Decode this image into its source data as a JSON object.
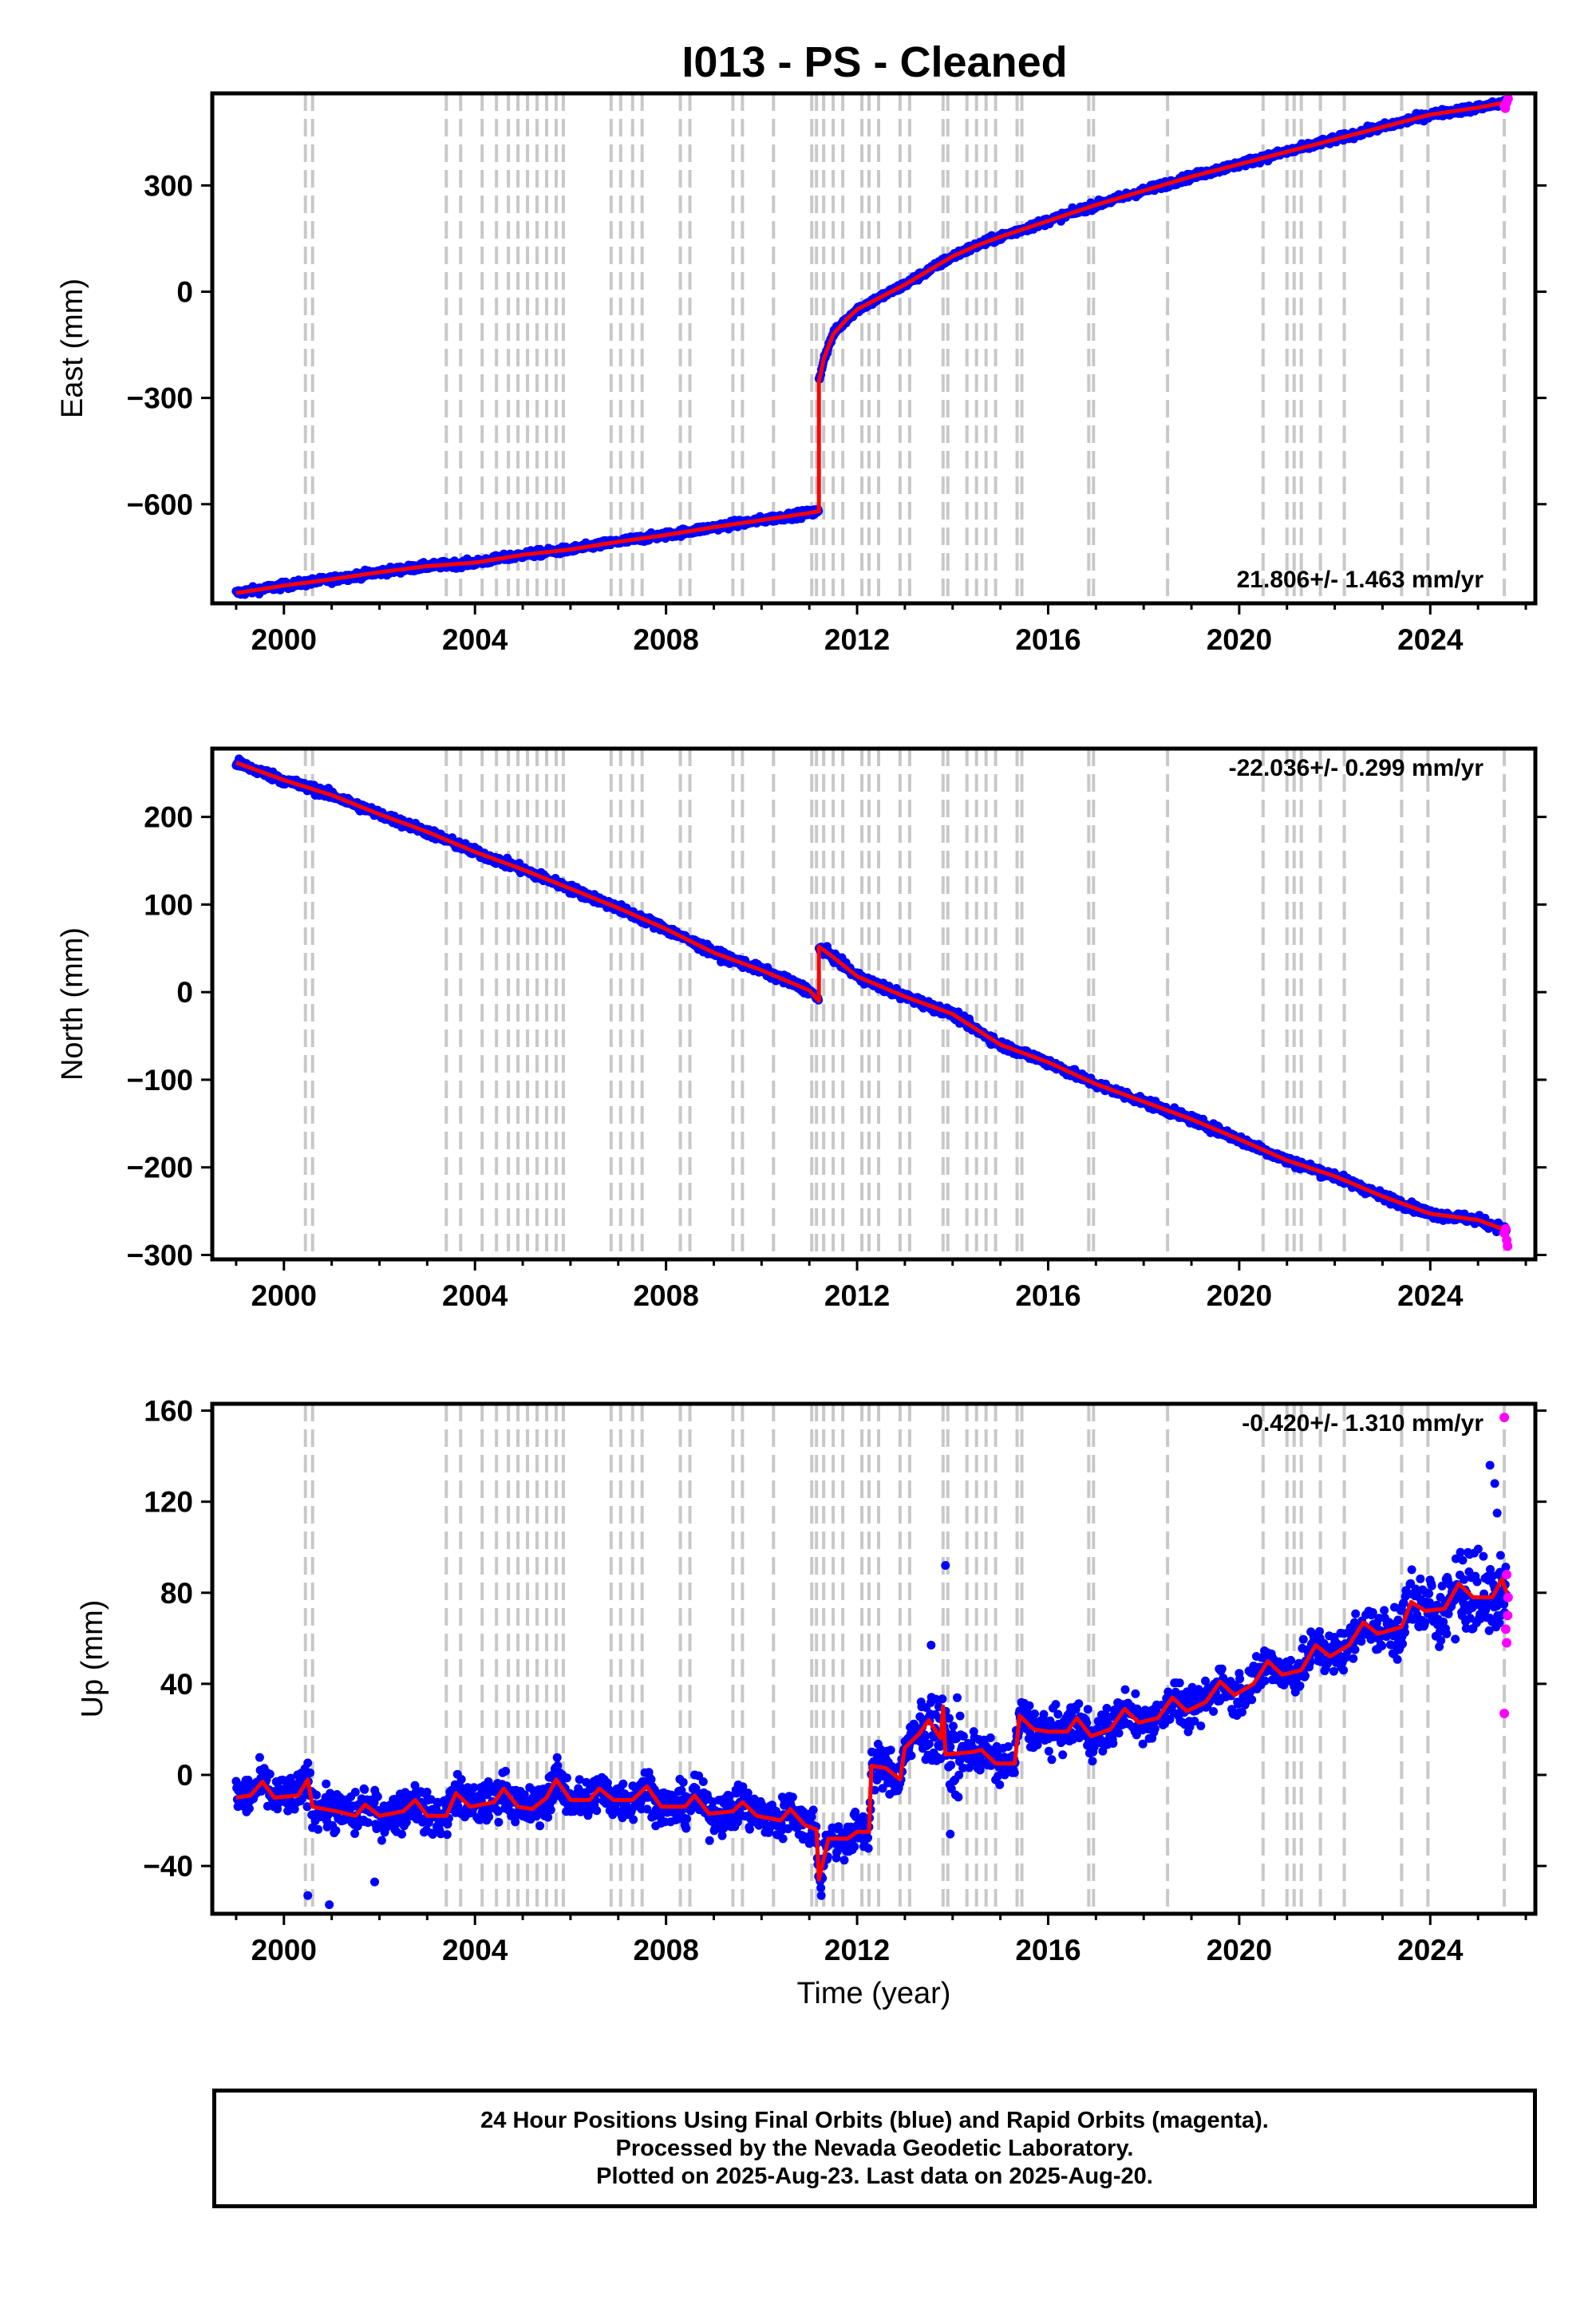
{
  "title": "I013  - PS - Cleaned",
  "footer": {
    "line1": "24 Hour Positions Using Final Orbits (blue) and Rapid Orbits (magenta).",
    "line2": "Processed by the Nevada Geodetic Laboratory.",
    "line3": "Plotted on 2025-Aug-23. Last data on 2025-Aug-20."
  },
  "colors": {
    "final": "#0000ff",
    "rapid": "#ff00ff",
    "model": "#ff0000",
    "steps": "#c8c8c8"
  },
  "step_lines": [
    2000.45,
    2000.6,
    2003.4,
    2003.7,
    2004.15,
    2004.45,
    2004.7,
    2004.9,
    2005.1,
    2005.3,
    2005.5,
    2005.7,
    2005.85,
    2006.85,
    2007.05,
    2007.3,
    2007.5,
    2008.3,
    2008.5,
    2009.4,
    2009.6,
    2010.25,
    2011.05,
    2011.15,
    2011.3,
    2011.5,
    2011.7,
    2012.1,
    2012.25,
    2012.45,
    2012.9,
    2013.1,
    2013.8,
    2013.9,
    2014.3,
    2014.5,
    2014.7,
    2014.9,
    2015.35,
    2015.45,
    2016.85,
    2016.95,
    2018.5,
    2020.5,
    2021.0,
    2021.15,
    2021.3,
    2021.7,
    2022.2,
    2023.4,
    2023.95,
    2025.55
  ],
  "chart_data": [
    {
      "type": "scatter",
      "title": "I013  - PS - Cleaned",
      "xlabel": "",
      "ylabel": "East (mm)",
      "xlim": [
        1998.5,
        2026.2
      ],
      "ylim": [
        -880,
        560
      ],
      "xticks": [
        2000,
        2004,
        2008,
        2012,
        2016,
        2020,
        2024
      ],
      "yticks": [
        -600,
        -300,
        0,
        300
      ],
      "ytick_labels": [
        "−600",
        "−300",
        "0",
        "300"
      ],
      "rate_label": "21.806+/- 1.463 mm/yr",
      "rate_pos": "bottom-right",
      "model": [
        [
          1999.0,
          -851
        ],
        [
          2000.0,
          -830
        ],
        [
          2001.0,
          -812
        ],
        [
          2002.0,
          -792
        ],
        [
          2003.0,
          -775
        ],
        [
          2004.0,
          -765
        ],
        [
          2005.0,
          -743
        ],
        [
          2006.0,
          -728
        ],
        [
          2007.0,
          -706
        ],
        [
          2008.0,
          -687
        ],
        [
          2009.0,
          -665
        ],
        [
          2010.0,
          -645
        ],
        [
          2011.0,
          -625
        ],
        [
          2011.2,
          -620
        ],
        [
          2011.2,
          -255
        ],
        [
          2011.3,
          -190
        ],
        [
          2011.5,
          -120
        ],
        [
          2011.8,
          -75
        ],
        [
          2012.0,
          -50
        ],
        [
          2012.5,
          -15
        ],
        [
          2013.0,
          20
        ],
        [
          2013.5,
          60
        ],
        [
          2014.0,
          100
        ],
        [
          2014.5,
          130
        ],
        [
          2015.0,
          155
        ],
        [
          2016.0,
          200
        ],
        [
          2017.0,
          245
        ],
        [
          2018.0,
          285
        ],
        [
          2019.0,
          325
        ],
        [
          2020.0,
          360
        ],
        [
          2021.0,
          395
        ],
        [
          2022.0,
          430
        ],
        [
          2023.0,
          465
        ],
        [
          2024.0,
          500
        ],
        [
          2025.0,
          520
        ],
        [
          2025.6,
          535
        ]
      ],
      "rapid": [
        [
          2025.55,
          525
        ],
        [
          2025.6,
          535
        ],
        [
          2025.63,
          545
        ],
        [
          2025.57,
          518
        ]
      ]
    },
    {
      "type": "scatter",
      "title": "",
      "xlabel": "",
      "ylabel": "North (mm)",
      "xlim": [
        1998.5,
        2026.2
      ],
      "ylim": [
        -305,
        278
      ],
      "xticks": [
        2000,
        2004,
        2008,
        2012,
        2016,
        2020,
        2024
      ],
      "yticks": [
        -300,
        -200,
        -100,
        0,
        100,
        200
      ],
      "ytick_labels": [
        "−300",
        "−200",
        "−100",
        "0",
        "100",
        "200"
      ],
      "rate_label": "-22.036+/- 0.299 mm/yr",
      "rate_pos": "top-right",
      "model": [
        [
          1999.0,
          262
        ],
        [
          2000.0,
          242
        ],
        [
          2001.0,
          225
        ],
        [
          2002.0,
          203
        ],
        [
          2003.0,
          183
        ],
        [
          2004.0,
          160
        ],
        [
          2005.0,
          140
        ],
        [
          2006.0,
          118
        ],
        [
          2007.0,
          96
        ],
        [
          2008.0,
          72
        ],
        [
          2009.0,
          45
        ],
        [
          2010.0,
          25
        ],
        [
          2011.0,
          2
        ],
        [
          2011.2,
          -10
        ],
        [
          2011.2,
          52
        ],
        [
          2011.5,
          40
        ],
        [
          2012.0,
          18
        ],
        [
          2013.0,
          -5
        ],
        [
          2014.0,
          -25
        ],
        [
          2015.0,
          -60
        ],
        [
          2016.0,
          -80
        ],
        [
          2017.0,
          -105
        ],
        [
          2018.0,
          -125
        ],
        [
          2019.0,
          -145
        ],
        [
          2020.0,
          -168
        ],
        [
          2021.0,
          -192
        ],
        [
          2022.0,
          -210
        ],
        [
          2023.0,
          -233
        ],
        [
          2024.0,
          -253
        ],
        [
          2025.0,
          -260
        ],
        [
          2025.6,
          -272
        ]
      ],
      "rapid": [
        [
          2025.55,
          -275
        ],
        [
          2025.6,
          -283
        ],
        [
          2025.62,
          -290
        ],
        [
          2025.58,
          -270
        ]
      ]
    },
    {
      "type": "scatter",
      "title": "",
      "xlabel": "Time (year)",
      "ylabel": "Up (mm)",
      "xlim": [
        1998.5,
        2026.2
      ],
      "ylim": [
        -61,
        163
      ],
      "xticks": [
        2000,
        2004,
        2008,
        2012,
        2016,
        2020,
        2024
      ],
      "yticks": [
        -40,
        0,
        40,
        80,
        120,
        160
      ],
      "ytick_labels": [
        "−40",
        "0",
        "40",
        "80",
        "120",
        "160"
      ],
      "rate_label": "-0.420+/- 1.310 mm/yr",
      "rate_pos": "top-right",
      "model": [
        [
          1999.0,
          -10
        ],
        [
          1999.3,
          -9
        ],
        [
          1999.55,
          -3
        ],
        [
          1999.8,
          -10
        ],
        [
          2000.3,
          -9
        ],
        [
          2000.5,
          -2
        ],
        [
          2000.6,
          -14
        ],
        [
          2001.1,
          -16
        ],
        [
          2001.5,
          -18
        ],
        [
          2001.7,
          -13
        ],
        [
          2002.0,
          -18
        ],
        [
          2002.5,
          -16
        ],
        [
          2002.75,
          -11
        ],
        [
          2003.0,
          -18
        ],
        [
          2003.4,
          -18
        ],
        [
          2003.6,
          -8
        ],
        [
          2003.9,
          -14
        ],
        [
          2004.4,
          -12
        ],
        [
          2004.6,
          -6
        ],
        [
          2004.9,
          -14
        ],
        [
          2005.2,
          -15
        ],
        [
          2005.5,
          -10
        ],
        [
          2005.7,
          -2
        ],
        [
          2006.0,
          -11
        ],
        [
          2006.4,
          -11
        ],
        [
          2006.6,
          -6
        ],
        [
          2006.9,
          -11
        ],
        [
          2007.3,
          -11
        ],
        [
          2007.6,
          -5
        ],
        [
          2007.9,
          -14
        ],
        [
          2008.4,
          -14
        ],
        [
          2008.6,
          -9
        ],
        [
          2008.9,
          -17
        ],
        [
          2009.4,
          -16
        ],
        [
          2009.6,
          -12
        ],
        [
          2009.9,
          -18
        ],
        [
          2010.4,
          -20
        ],
        [
          2010.6,
          -15
        ],
        [
          2010.9,
          -22
        ],
        [
          2011.15,
          -24
        ],
        [
          2011.2,
          -46
        ],
        [
          2011.4,
          -28
        ],
        [
          2011.8,
          -28
        ],
        [
          2012.0,
          -25
        ],
        [
          2012.25,
          -25
        ],
        [
          2012.3,
          4
        ],
        [
          2012.6,
          3
        ],
        [
          2012.9,
          -2
        ],
        [
          2013.0,
          12
        ],
        [
          2013.3,
          18
        ],
        [
          2013.5,
          24
        ],
        [
          2013.75,
          16
        ],
        [
          2013.8,
          30
        ],
        [
          2013.85,
          9
        ],
        [
          2014.4,
          10
        ],
        [
          2014.6,
          11
        ],
        [
          2014.9,
          5
        ],
        [
          2015.3,
          5
        ],
        [
          2015.4,
          26
        ],
        [
          2015.7,
          20
        ],
        [
          2016.0,
          19
        ],
        [
          2016.4,
          19
        ],
        [
          2016.6,
          25
        ],
        [
          2016.9,
          17
        ],
        [
          2017.3,
          20
        ],
        [
          2017.6,
          29
        ],
        [
          2017.9,
          23
        ],
        [
          2018.3,
          25
        ],
        [
          2018.6,
          34
        ],
        [
          2018.9,
          28
        ],
        [
          2019.3,
          32
        ],
        [
          2019.6,
          41
        ],
        [
          2019.9,
          35
        ],
        [
          2020.3,
          40
        ],
        [
          2020.6,
          50
        ],
        [
          2020.9,
          44
        ],
        [
          2021.3,
          46
        ],
        [
          2021.6,
          57
        ],
        [
          2021.9,
          52
        ],
        [
          2022.3,
          57
        ],
        [
          2022.6,
          67
        ],
        [
          2022.9,
          62
        ],
        [
          2023.4,
          65
        ],
        [
          2023.6,
          76
        ],
        [
          2023.9,
          72
        ],
        [
          2024.3,
          73
        ],
        [
          2024.6,
          84
        ],
        [
          2024.9,
          78
        ],
        [
          2025.3,
          78
        ],
        [
          2025.5,
          86
        ],
        [
          2025.6,
          80
        ]
      ],
      "outliers": [
        [
          2013.85,
          92
        ],
        [
          2013.55,
          57
        ],
        [
          2025.25,
          136
        ],
        [
          2025.35,
          128
        ],
        [
          2025.4,
          115
        ],
        [
          2000.95,
          -57
        ],
        [
          2000.5,
          -53
        ],
        [
          2001.9,
          -47
        ],
        [
          2013.95,
          -26
        ],
        [
          2011.25,
          -53
        ]
      ],
      "rapid": [
        [
          2025.55,
          157
        ],
        [
          2025.6,
          88
        ],
        [
          2025.62,
          70
        ],
        [
          2025.58,
          64
        ],
        [
          2025.6,
          58
        ],
        [
          2025.55,
          27
        ],
        [
          2025.63,
          78
        ]
      ]
    }
  ]
}
